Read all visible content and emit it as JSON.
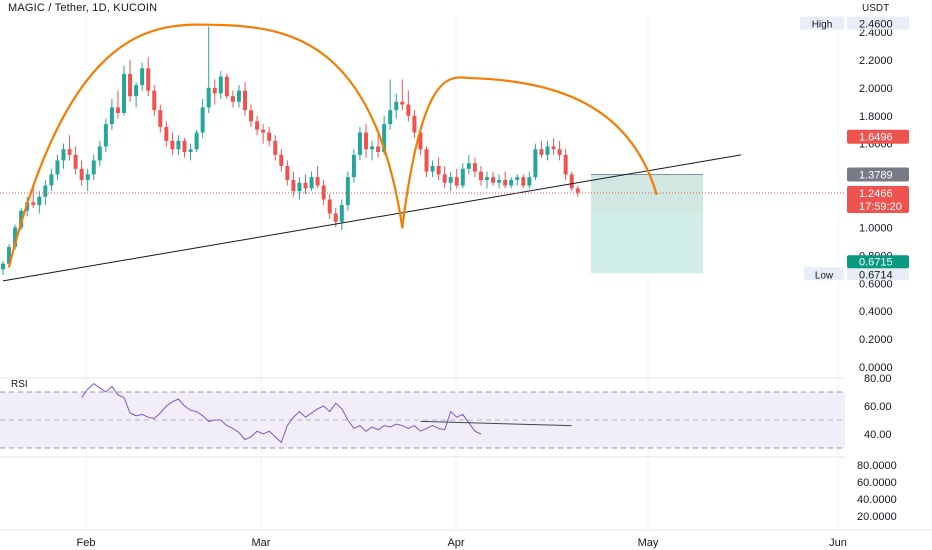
{
  "header": {
    "title": "MAGIC / Tether, 1D, KUCOIN"
  },
  "price_axis": {
    "unit": "USDT",
    "ticks": [
      "2.4600",
      "2.4000",
      "2.2000",
      "2.0000",
      "1.8000",
      "1.6000",
      "1.0000",
      "0.8000",
      "0.6000",
      "0.4000",
      "0.2000",
      "0.0000"
    ]
  },
  "badges": {
    "high_label": "High",
    "high_value": "2.4600",
    "stop_value": "1.6496",
    "entry_value": "1.3789",
    "last_price": "1.2466",
    "countdown": "17:59:20",
    "target_value": "0.6715",
    "low_label": "Low",
    "low_value": "0.6714"
  },
  "rsi": {
    "label": "RSI",
    "ticks": [
      "80.00",
      "60.00",
      "40.00"
    ],
    "bands": [
      70,
      30
    ]
  },
  "volume_axis": {
    "ticks": [
      "80.0000",
      "60.0000",
      "40.0000",
      "20.0000"
    ]
  },
  "time_axis": {
    "labels": [
      "Feb",
      "Mar",
      "Apr",
      "May",
      "Jun"
    ]
  },
  "colors": {
    "up": "#26a69a",
    "down": "#ef5350",
    "pattern": "#f57c00",
    "trend": "#131722",
    "stop_zone": "#f9c8c8",
    "target_zone": "#c8ebe3",
    "rsi_line": "#7e57c2"
  },
  "chart_data": {
    "type": "candlestick",
    "title": "MAGIC / Tether, 1D, KUCOIN",
    "start_date": "2023-01-20",
    "candles": [
      [
        0.7,
        0.76,
        0.66,
        0.74
      ],
      [
        0.74,
        0.88,
        0.72,
        0.86
      ],
      [
        0.86,
        1.02,
        0.84,
        1.0
      ],
      [
        1.0,
        1.14,
        0.98,
        1.12
      ],
      [
        1.12,
        1.22,
        1.08,
        1.18
      ],
      [
        1.18,
        1.3,
        1.14,
        1.16
      ],
      [
        1.16,
        1.26,
        1.1,
        1.22
      ],
      [
        1.22,
        1.34,
        1.16,
        1.3
      ],
      [
        1.3,
        1.42,
        1.26,
        1.38
      ],
      [
        1.38,
        1.52,
        1.34,
        1.48
      ],
      [
        1.48,
        1.6,
        1.42,
        1.56
      ],
      [
        1.56,
        1.66,
        1.48,
        1.52
      ],
      [
        1.52,
        1.58,
        1.38,
        1.42
      ],
      [
        1.42,
        1.48,
        1.3,
        1.34
      ],
      [
        1.34,
        1.42,
        1.26,
        1.38
      ],
      [
        1.38,
        1.52,
        1.34,
        1.48
      ],
      [
        1.48,
        1.62,
        1.44,
        1.58
      ],
      [
        1.58,
        1.78,
        1.54,
        1.74
      ],
      [
        1.74,
        1.92,
        1.7,
        1.86
      ],
      [
        1.86,
        1.98,
        1.78,
        1.82
      ],
      [
        1.82,
        2.16,
        1.8,
        2.1
      ],
      [
        2.1,
        2.2,
        1.9,
        1.94
      ],
      [
        1.94,
        2.04,
        1.86,
        2.02
      ],
      [
        2.02,
        2.18,
        1.98,
        2.14
      ],
      [
        2.14,
        2.22,
        1.94,
        1.98
      ],
      [
        1.98,
        2.02,
        1.8,
        1.84
      ],
      [
        1.84,
        1.88,
        1.68,
        1.72
      ],
      [
        1.72,
        1.76,
        1.58,
        1.62
      ],
      [
        1.62,
        1.68,
        1.52,
        1.56
      ],
      [
        1.56,
        1.66,
        1.52,
        1.62
      ],
      [
        1.62,
        1.64,
        1.5,
        1.54
      ],
      [
        1.54,
        1.6,
        1.48,
        1.56
      ],
      [
        1.56,
        1.7,
        1.54,
        1.68
      ],
      [
        1.68,
        1.92,
        1.64,
        1.86
      ],
      [
        1.86,
        2.44,
        1.82,
        2.0
      ],
      [
        2.0,
        2.06,
        1.88,
        1.96
      ],
      [
        1.96,
        2.12,
        1.92,
        2.08
      ],
      [
        2.08,
        2.1,
        1.92,
        1.94
      ],
      [
        1.94,
        1.98,
        1.86,
        1.9
      ],
      [
        1.9,
        2.02,
        1.86,
        1.98
      ],
      [
        1.98,
        2.04,
        1.8,
        1.84
      ],
      [
        1.84,
        1.88,
        1.72,
        1.76
      ],
      [
        1.76,
        1.8,
        1.66,
        1.7
      ],
      [
        1.7,
        1.74,
        1.6,
        1.68
      ],
      [
        1.68,
        1.72,
        1.58,
        1.62
      ],
      [
        1.62,
        1.66,
        1.48,
        1.52
      ],
      [
        1.52,
        1.56,
        1.4,
        1.44
      ],
      [
        1.44,
        1.48,
        1.3,
        1.34
      ],
      [
        1.34,
        1.4,
        1.22,
        1.26
      ],
      [
        1.26,
        1.36,
        1.2,
        1.32
      ],
      [
        1.32,
        1.38,
        1.24,
        1.28
      ],
      [
        1.28,
        1.4,
        1.26,
        1.36
      ],
      [
        1.36,
        1.44,
        1.28,
        1.3
      ],
      [
        1.3,
        1.34,
        1.16,
        1.2
      ],
      [
        1.2,
        1.24,
        1.06,
        1.1
      ],
      [
        1.1,
        1.14,
        1.0,
        1.04
      ],
      [
        1.04,
        1.2,
        0.98,
        1.16
      ],
      [
        1.16,
        1.4,
        1.12,
        1.36
      ],
      [
        1.36,
        1.56,
        1.32,
        1.52
      ],
      [
        1.52,
        1.72,
        1.48,
        1.68
      ],
      [
        1.68,
        1.74,
        1.5,
        1.56
      ],
      [
        1.56,
        1.62,
        1.48,
        1.58
      ],
      [
        1.58,
        1.66,
        1.5,
        1.54
      ],
      [
        1.54,
        1.8,
        1.52,
        1.74
      ],
      [
        1.74,
        2.06,
        1.7,
        1.84
      ],
      [
        1.84,
        1.96,
        1.78,
        1.9
      ],
      [
        1.9,
        2.06,
        1.84,
        1.88
      ],
      [
        1.88,
        1.98,
        1.76,
        1.8
      ],
      [
        1.8,
        1.84,
        1.64,
        1.68
      ],
      [
        1.68,
        1.7,
        1.52,
        1.56
      ],
      [
        1.56,
        1.58,
        1.36,
        1.4
      ],
      [
        1.4,
        1.48,
        1.36,
        1.44
      ],
      [
        1.44,
        1.5,
        1.34,
        1.38
      ],
      [
        1.38,
        1.44,
        1.28,
        1.32
      ],
      [
        1.32,
        1.4,
        1.26,
        1.36
      ],
      [
        1.36,
        1.42,
        1.28,
        1.3
      ],
      [
        1.3,
        1.46,
        1.28,
        1.42
      ],
      [
        1.42,
        1.52,
        1.38,
        1.46
      ],
      [
        1.46,
        1.5,
        1.36,
        1.4
      ],
      [
        1.4,
        1.44,
        1.3,
        1.34
      ],
      [
        1.34,
        1.4,
        1.28,
        1.36
      ],
      [
        1.36,
        1.4,
        1.3,
        1.32
      ],
      [
        1.32,
        1.38,
        1.28,
        1.34
      ],
      [
        1.34,
        1.4,
        1.28,
        1.3
      ],
      [
        1.3,
        1.36,
        1.28,
        1.34
      ],
      [
        1.34,
        1.38,
        1.3,
        1.36
      ],
      [
        1.36,
        1.38,
        1.28,
        1.3
      ],
      [
        1.3,
        1.4,
        1.28,
        1.36
      ],
      [
        1.36,
        1.6,
        1.34,
        1.56
      ],
      [
        1.56,
        1.62,
        1.5,
        1.52
      ],
      [
        1.52,
        1.62,
        1.48,
        1.58
      ],
      [
        1.58,
        1.64,
        1.52,
        1.56
      ],
      [
        1.56,
        1.62,
        1.48,
        1.52
      ],
      [
        1.52,
        1.56,
        1.34,
        1.38
      ],
      [
        1.38,
        1.4,
        1.26,
        1.28
      ],
      [
        1.28,
        1.3,
        1.22,
        1.25
      ]
    ],
    "rsi_values": [
      66,
      72,
      76,
      73,
      70,
      74,
      68,
      66,
      55,
      53,
      54,
      52,
      51,
      55,
      60,
      63,
      65,
      60,
      57,
      56,
      53,
      49,
      50,
      50,
      46,
      44,
      41,
      36,
      38,
      42,
      40,
      42,
      38,
      34,
      46,
      52,
      56,
      52,
      55,
      58,
      60,
      56,
      62,
      58,
      50,
      44,
      46,
      42,
      45,
      43,
      46,
      45,
      47,
      46,
      44,
      46,
      42,
      44,
      46,
      44,
      43,
      56,
      52,
      54,
      48,
      42,
      40
    ],
    "rsi_divergence_line": [
      [
        69,
        49
      ],
      [
        94,
        46
      ]
    ],
    "position": {
      "entry": 1.3789,
      "stop": 1.6496,
      "target": 0.6715
    },
    "trendline": {
      "from": [
        0,
        0.66
      ],
      "to": [
        122,
        1.52
      ]
    },
    "pattern_arcs": [
      {
        "from": [
          1,
          0.72
        ],
        "peak": [
          36,
          2.45
        ],
        "to": [
          66,
          1.0
        ]
      },
      {
        "from": [
          66,
          1.0
        ],
        "peak": [
          77,
          2.07
        ],
        "to": [
          108,
          1.24
        ]
      }
    ],
    "high": 2.46,
    "low": 0.6714,
    "last": 1.2466
  }
}
